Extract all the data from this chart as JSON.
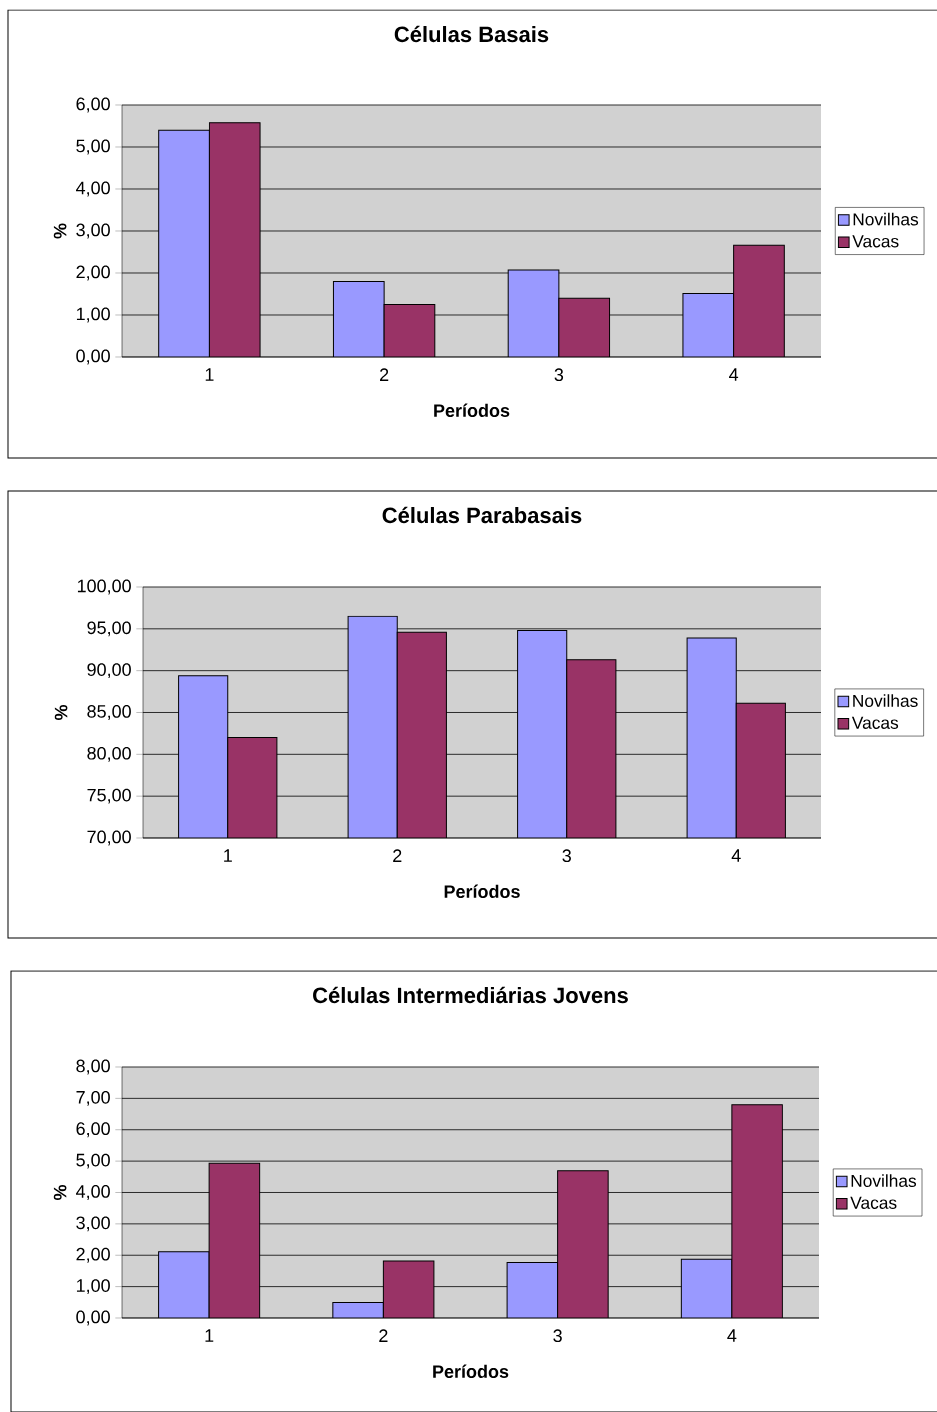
{
  "chart_data": [
    {
      "type": "bar",
      "title": "Células Basais",
      "xlabel": "Períodos",
      "ylabel": "%",
      "categories": [
        "1",
        "2",
        "3",
        "4"
      ],
      "series": [
        {
          "name": "Novilhas",
          "color": "#9999ff",
          "values": [
            5.4,
            1.8,
            2.07,
            1.51
          ]
        },
        {
          "name": "Vacas",
          "color": "#993366",
          "values": [
            5.58,
            1.25,
            1.4,
            2.66
          ]
        }
      ],
      "ylim": [
        0,
        6
      ],
      "yticks": [
        {
          "value": 0,
          "label": "0,00"
        },
        {
          "value": 1,
          "label": "1,00"
        },
        {
          "value": 2,
          "label": "2,00"
        },
        {
          "value": 3,
          "label": "3,00"
        },
        {
          "value": 4,
          "label": "4,00"
        },
        {
          "value": 5,
          "label": "5,00"
        },
        {
          "value": 6,
          "label": "6,00"
        }
      ],
      "grid": "y",
      "legend": "right"
    },
    {
      "type": "bar",
      "title": "Células Parabasais",
      "xlabel": "Períodos",
      "ylabel": "%",
      "categories": [
        "1",
        "2",
        "3",
        "4"
      ],
      "series": [
        {
          "name": "Novilhas",
          "color": "#9999ff",
          "values": [
            89.4,
            96.5,
            94.8,
            93.9
          ]
        },
        {
          "name": "Vacas",
          "color": "#993366",
          "values": [
            82.0,
            94.6,
            91.3,
            86.1
          ]
        }
      ],
      "ylim": [
        70,
        100
      ],
      "yticks": [
        {
          "value": 70,
          "label": "70,00"
        },
        {
          "value": 75,
          "label": "75,00"
        },
        {
          "value": 80,
          "label": "80,00"
        },
        {
          "value": 85,
          "label": "85,00"
        },
        {
          "value": 90,
          "label": "90,00"
        },
        {
          "value": 95,
          "label": "95,00"
        },
        {
          "value": 100,
          "label": "100,00"
        }
      ],
      "grid": "y",
      "legend": "right"
    },
    {
      "type": "bar",
      "title": "Células Intermediárias Jovens",
      "xlabel": "Períodos",
      "ylabel": "%",
      "categories": [
        "1",
        "2",
        "3",
        "4"
      ],
      "series": [
        {
          "name": "Novilhas",
          "color": "#9999ff",
          "values": [
            2.11,
            0.49,
            1.77,
            1.87
          ]
        },
        {
          "name": "Vacas",
          "color": "#993366",
          "values": [
            4.93,
            1.82,
            4.69,
            6.8
          ]
        }
      ],
      "ylim": [
        0,
        8
      ],
      "yticks": [
        {
          "value": 0,
          "label": "0,00"
        },
        {
          "value": 1,
          "label": "1,00"
        },
        {
          "value": 2,
          "label": "2,00"
        },
        {
          "value": 3,
          "label": "3,00"
        },
        {
          "value": 4,
          "label": "4,00"
        },
        {
          "value": 5,
          "label": "5,00"
        },
        {
          "value": 6,
          "label": "6,00"
        },
        {
          "value": 7,
          "label": "7,00"
        },
        {
          "value": 8,
          "label": "8,00"
        }
      ],
      "grid": "y",
      "legend": "right"
    }
  ]
}
